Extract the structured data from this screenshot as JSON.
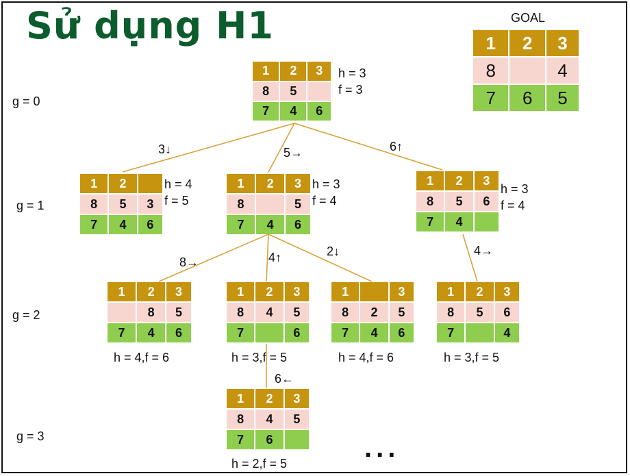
{
  "title": "Sử dụng H1",
  "goal": {
    "label": "GOAL",
    "tiles": [
      [
        "1",
        "2",
        "3"
      ],
      [
        "8",
        "",
        "4"
      ],
      [
        "7",
        "6",
        "5"
      ]
    ]
  },
  "levels": [
    "g = 0",
    "g = 1",
    "g = 2",
    "g = 3"
  ],
  "nodes": [
    {
      "id": "root",
      "tiles": [
        [
          "1",
          "2",
          "3"
        ],
        [
          "8",
          "5",
          ""
        ],
        [
          "7",
          "4",
          "6"
        ]
      ],
      "h": "h = 3",
      "f": "f = 3"
    },
    {
      "id": "n1a",
      "tiles": [
        [
          "1",
          "2",
          ""
        ],
        [
          "8",
          "5",
          "3"
        ],
        [
          "7",
          "4",
          "6"
        ]
      ],
      "h": "h = 4",
      "f": "f = 5"
    },
    {
      "id": "n1b",
      "tiles": [
        [
          "1",
          "2",
          "3"
        ],
        [
          "8",
          "",
          "5"
        ],
        [
          "7",
          "4",
          "6"
        ]
      ],
      "h": "h = 3",
      "f": "f = 4"
    },
    {
      "id": "n1c",
      "tiles": [
        [
          "1",
          "2",
          "3"
        ],
        [
          "8",
          "5",
          "6"
        ],
        [
          "7",
          "4",
          ""
        ]
      ],
      "h": "h = 3",
      "f": "f = 4"
    },
    {
      "id": "n2a",
      "tiles": [
        [
          "1",
          "2",
          "3"
        ],
        [
          "",
          "8",
          "5"
        ],
        [
          "7",
          "4",
          "6"
        ]
      ],
      "hf": "h = 4,f = 6"
    },
    {
      "id": "n2b",
      "tiles": [
        [
          "1",
          "2",
          "3"
        ],
        [
          "8",
          "4",
          "5"
        ],
        [
          "7",
          "",
          "6"
        ]
      ],
      "hf": "h = 3,f = 5"
    },
    {
      "id": "n2c",
      "tiles": [
        [
          "1",
          "",
          "3"
        ],
        [
          "8",
          "2",
          "5"
        ],
        [
          "7",
          "4",
          "6"
        ]
      ],
      "hf": "h = 4,f = 6"
    },
    {
      "id": "n2d",
      "tiles": [
        [
          "1",
          "2",
          "3"
        ],
        [
          "8",
          "5",
          "6"
        ],
        [
          "7",
          "",
          "4"
        ]
      ],
      "hf": "h = 3,f = 5"
    },
    {
      "id": "n3a",
      "tiles": [
        [
          "1",
          "2",
          "3"
        ],
        [
          "8",
          "4",
          "5"
        ],
        [
          "7",
          "6",
          ""
        ]
      ],
      "hf": "h = 2,f = 5"
    }
  ],
  "moves": [
    "3↓",
    "5→",
    "6↑",
    "8→",
    "4↑",
    "2↓",
    "4→",
    "6←"
  ],
  "ellipsis": "..."
}
